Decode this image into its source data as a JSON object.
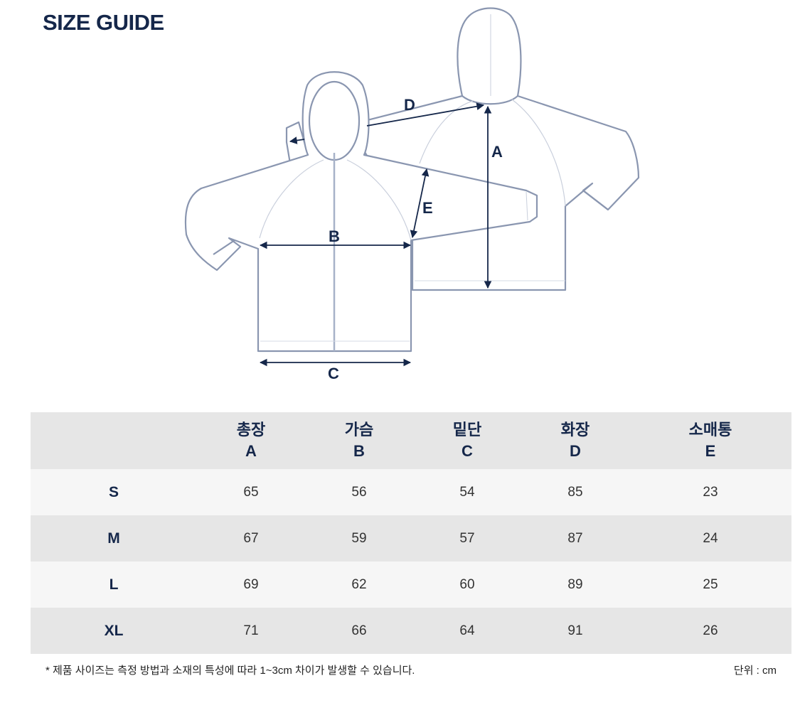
{
  "title": "SIZE GUIDE",
  "diagram": {
    "labels": [
      "A",
      "B",
      "C",
      "D",
      "E"
    ],
    "line_color": "#8a96b0",
    "arrow_color": "#15274a"
  },
  "table": {
    "columns": [
      {
        "name": "총장",
        "code": "A"
      },
      {
        "name": "가슴",
        "code": "B"
      },
      {
        "name": "밑단",
        "code": "C"
      },
      {
        "name": "화장",
        "code": "D"
      },
      {
        "name": "소매통",
        "code": "E"
      }
    ],
    "rows": [
      {
        "size": "S",
        "values": [
          "65",
          "56",
          "54",
          "85",
          "23"
        ]
      },
      {
        "size": "M",
        "values": [
          "67",
          "59",
          "57",
          "87",
          "24"
        ]
      },
      {
        "size": "L",
        "values": [
          "69",
          "62",
          "60",
          "89",
          "25"
        ]
      },
      {
        "size": "XL",
        "values": [
          "71",
          "66",
          "64",
          "91",
          "26"
        ]
      }
    ]
  },
  "footnote": "* 제품 사이즈는 측정 방법과 소재의 특성에 따라  1~3cm 차이가 발생할 수 있습니다.",
  "unit": "단위 : cm"
}
